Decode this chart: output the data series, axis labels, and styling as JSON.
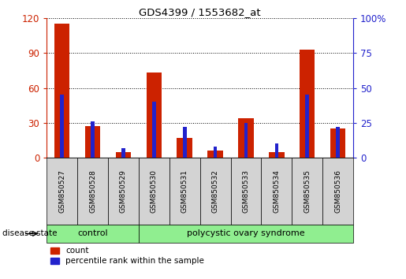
{
  "title": "GDS4399 / 1553682_at",
  "samples": [
    "GSM850527",
    "GSM850528",
    "GSM850529",
    "GSM850530",
    "GSM850531",
    "GSM850532",
    "GSM850533",
    "GSM850534",
    "GSM850535",
    "GSM850536"
  ],
  "counts": [
    115,
    27,
    5,
    73,
    17,
    6,
    34,
    5,
    93,
    25
  ],
  "percentiles": [
    45,
    26,
    7,
    40,
    22,
    8,
    25,
    10,
    45,
    22
  ],
  "ylim_left": [
    0,
    120
  ],
  "yticks_left": [
    0,
    30,
    60,
    90,
    120
  ],
  "ylim_right": [
    0,
    100
  ],
  "yticks_right": [
    0,
    25,
    50,
    75,
    100
  ],
  "bar_color_red": "#cc2200",
  "bar_color_blue": "#2222cc",
  "bg_color": "#ffffff",
  "plot_bg": "#ffffff",
  "tick_label_bg": "#d3d3d3",
  "control_samples": 3,
  "control_label": "control",
  "disease_label": "polycystic ovary syndrome",
  "group_color": "#90ee90",
  "legend_count": "count",
  "legend_pct": "percentile rank within the sample",
  "disease_state_label": "disease state",
  "red_bar_width": 0.5,
  "blue_bar_width": 0.12
}
